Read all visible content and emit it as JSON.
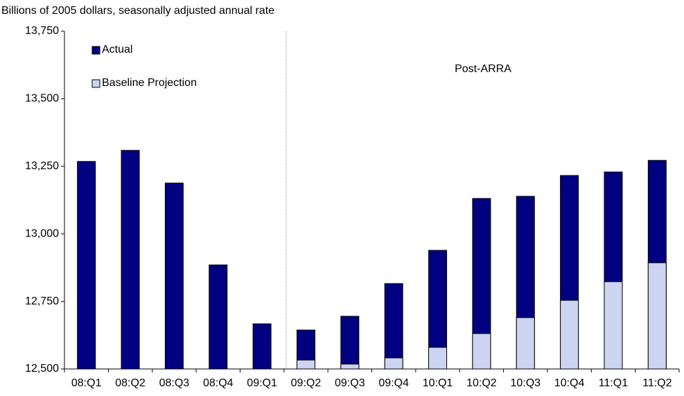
{
  "chart_data": {
    "type": "bar",
    "title": "Billions of 2005 dollars, seasonally adjusted annual rate",
    "annotation": "Post-ARRA",
    "categories": [
      "08:Q1",
      "08:Q2",
      "08:Q3",
      "08:Q4",
      "09:Q1",
      "09:Q2",
      "09:Q3",
      "09:Q4",
      "10:Q1",
      "10:Q2",
      "10:Q3",
      "10:Q4",
      "11:Q1",
      "11:Q2"
    ],
    "series": [
      {
        "name": "Actual",
        "color": "#000080",
        "values": [
          13268,
          13309,
          13188,
          12885,
          12667,
          12644,
          12695,
          12816,
          12939,
          13131,
          13139,
          13216,
          13229,
          13272
        ]
      },
      {
        "name": "Baseline Projection",
        "color": "#ccd4f2",
        "values": [
          null,
          null,
          null,
          null,
          null,
          12533,
          12518,
          12541,
          12580,
          12631,
          12690,
          12754,
          12823,
          12893
        ]
      }
    ],
    "ylim": [
      12500,
      13750
    ],
    "yticks": [
      {
        "value": 12500,
        "label": "12,500"
      },
      {
        "value": 12750,
        "label": "12,750"
      },
      {
        "value": 13000,
        "label": "13,000"
      },
      {
        "value": 13250,
        "label": "13,250"
      },
      {
        "value": 13500,
        "label": "13,500"
      },
      {
        "value": 13750,
        "label": "13,750"
      }
    ],
    "legend": "upper left",
    "grid": false
  }
}
